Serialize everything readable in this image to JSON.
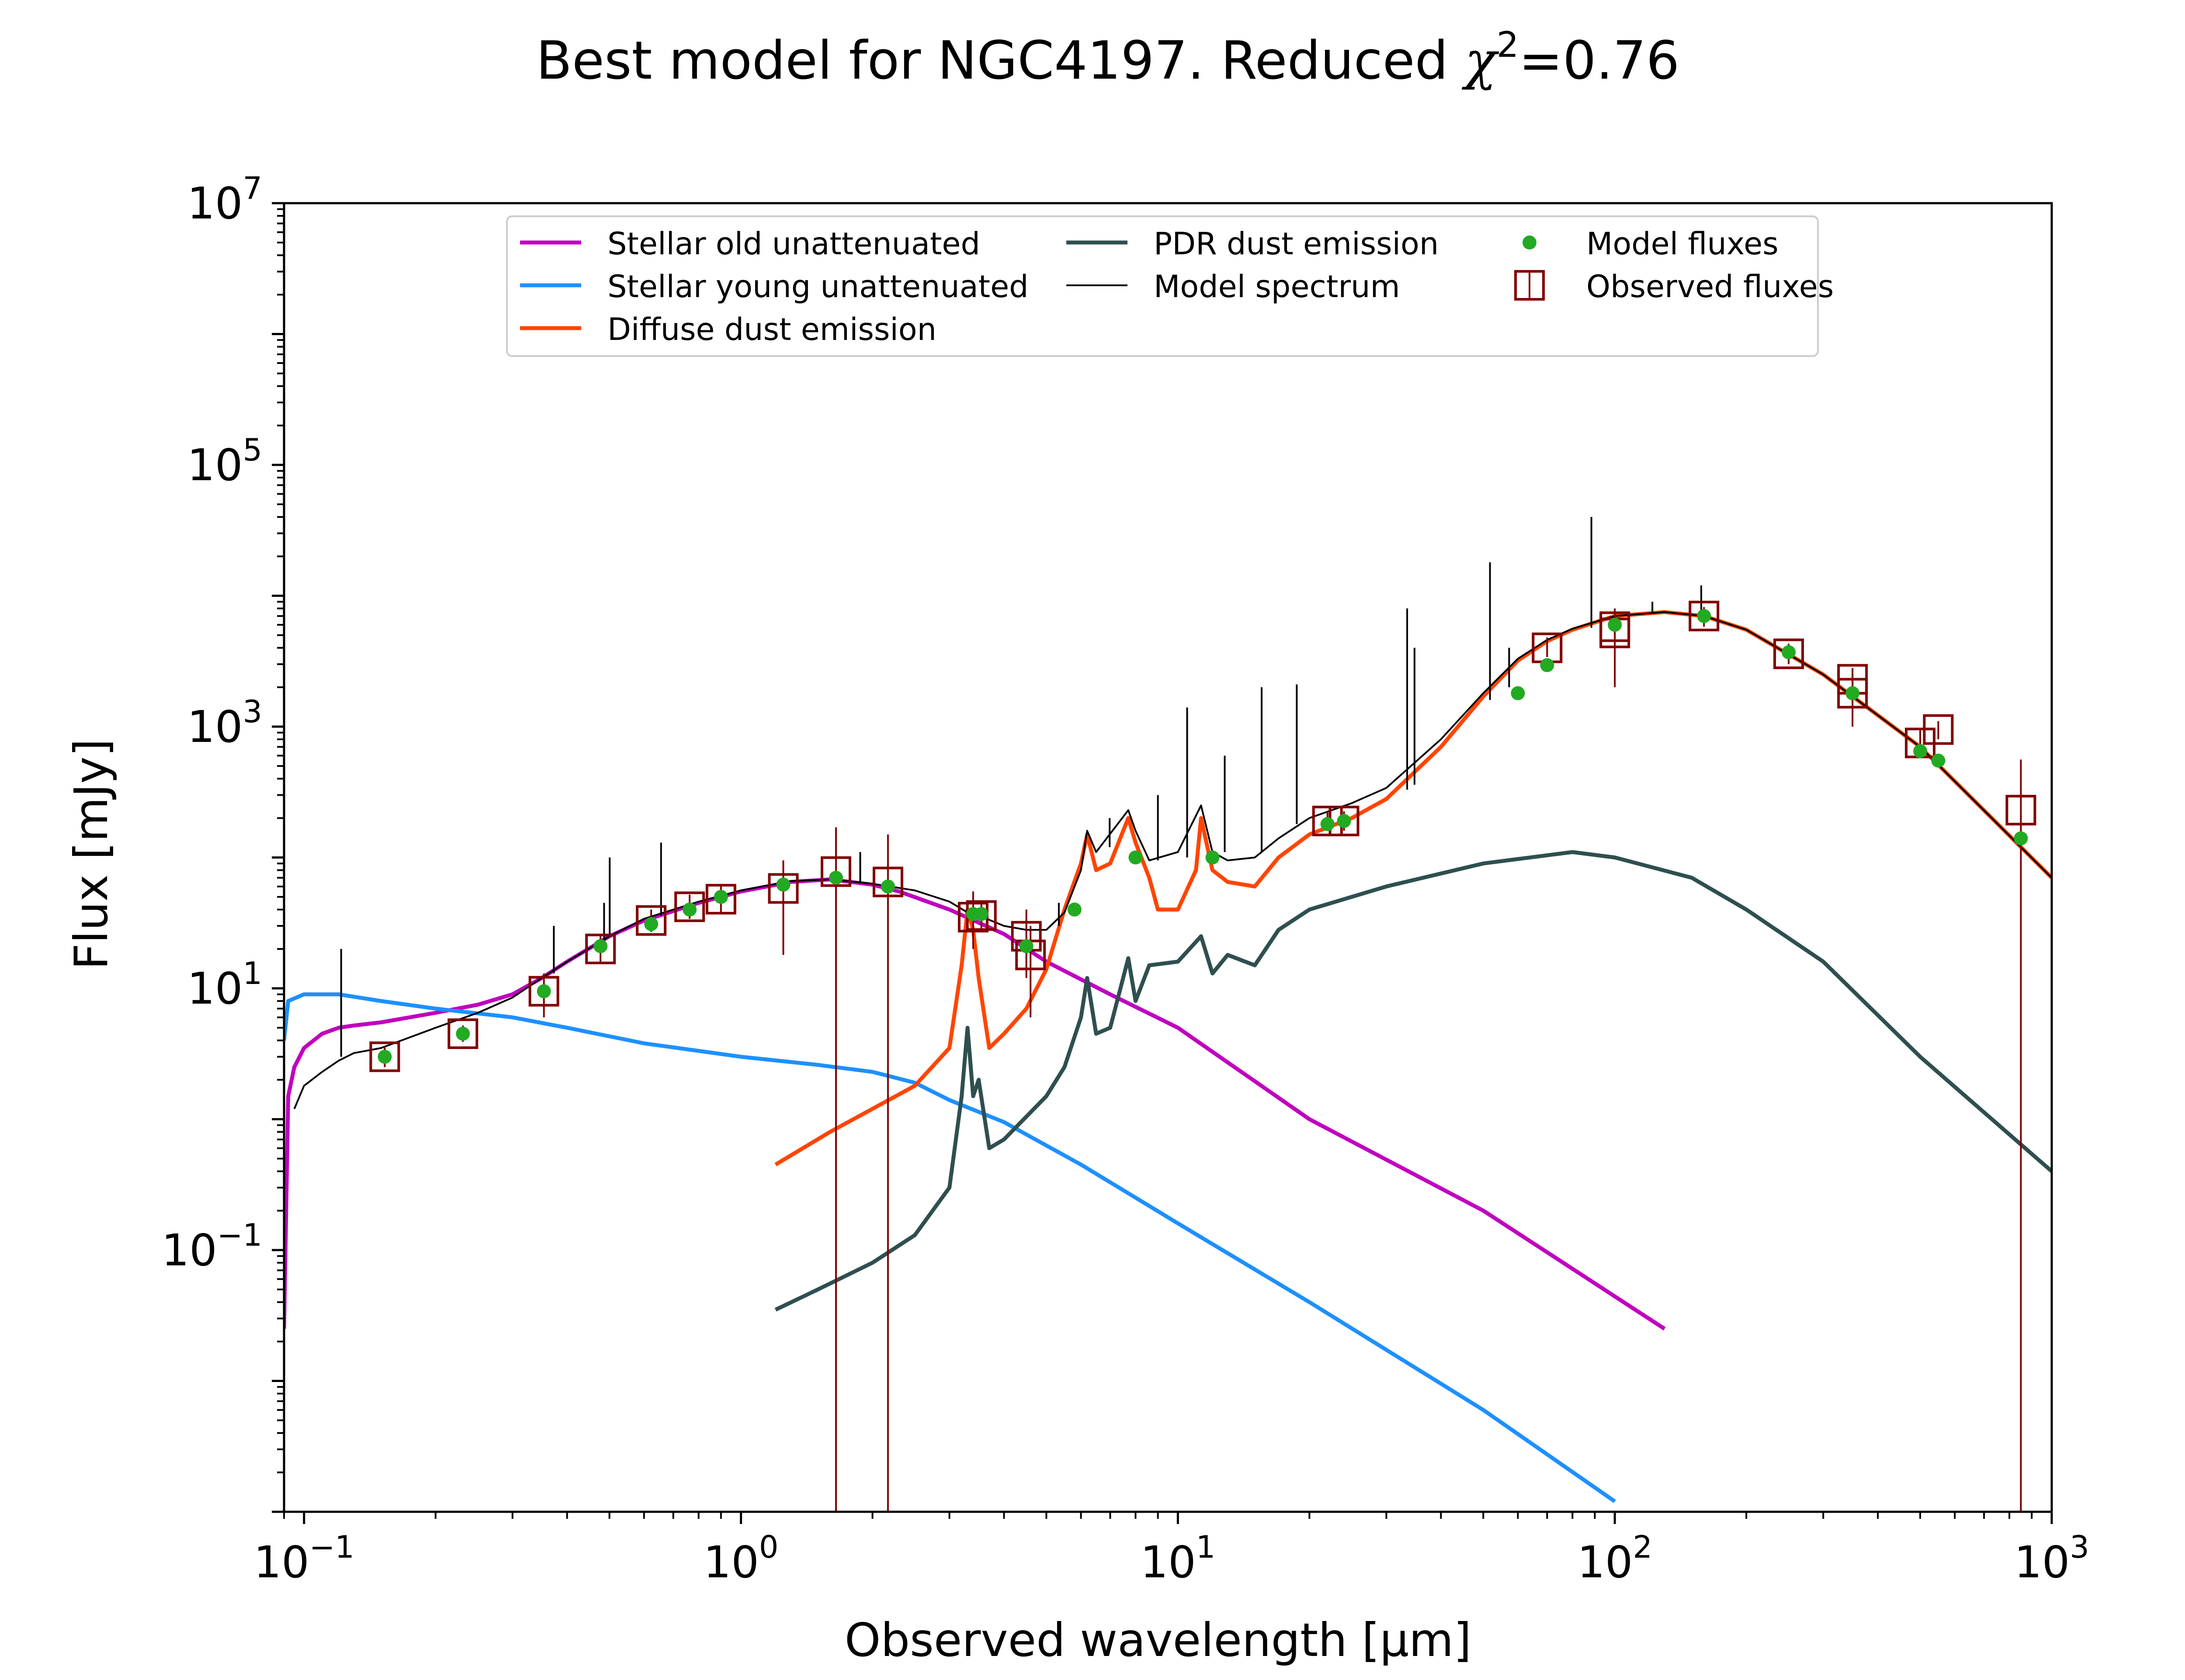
{
  "chart_data": {
    "type": "line",
    "title": "Best model for NGC4197. Reduced χ²=0.76",
    "title_parts": {
      "prefix": "Best model for NGC4197. Reduced ",
      "symbol": "χ",
      "superscript": "2",
      "suffix": "=0.76"
    },
    "xlabel": "Observed wavelength [μm]",
    "ylabel": "Flux [mJy]",
    "xscale": "log",
    "yscale": "log",
    "xlim": [
      0.09,
      1000
    ],
    "ylim": [
      0.001,
      10000000
    ],
    "grid": false,
    "legend_placement": "upper-center",
    "x_ticks": [
      {
        "value": 0.1,
        "base": "10",
        "exp": "−1"
      },
      {
        "value": 1,
        "base": "10",
        "exp": "0"
      },
      {
        "value": 10,
        "base": "10",
        "exp": "1"
      },
      {
        "value": 100,
        "base": "10",
        "exp": "2"
      },
      {
        "value": 1000,
        "base": "10",
        "exp": "3"
      }
    ],
    "y_ticks": [
      {
        "value": 0.1,
        "base": "10",
        "exp": "−1"
      },
      {
        "value": 10,
        "base": "10",
        "exp": "1"
      },
      {
        "value": 1000,
        "base": "10",
        "exp": "3"
      },
      {
        "value": 100000,
        "base": "10",
        "exp": "5"
      },
      {
        "value": 10000000,
        "base": "10",
        "exp": "7"
      }
    ],
    "series": [
      {
        "name": "Stellar old unattenuated",
        "color": "#bf00bf",
        "x": [
          0.09,
          0.092,
          0.095,
          0.1,
          0.11,
          0.12,
          0.13,
          0.15,
          0.2,
          0.25,
          0.3,
          0.35,
          0.4,
          0.5,
          0.6,
          0.8,
          1.0,
          1.3,
          1.6,
          2.0,
          2.3,
          3.0,
          4.0,
          5.0,
          7.0,
          10,
          20,
          50,
          130
        ],
        "y": [
          0.025,
          1.5,
          2.5,
          3.5,
          4.5,
          5.0,
          5.2,
          5.5,
          6.5,
          7.5,
          9.0,
          12,
          16,
          25,
          33,
          45,
          55,
          65,
          68,
          62,
          55,
          40,
          26,
          16,
          9,
          5,
          1.0,
          0.2,
          0.025
        ]
      },
      {
        "name": "Stellar young unattenuated",
        "color": "#1e90ff",
        "x": [
          0.09,
          0.092,
          0.1,
          0.12,
          0.15,
          0.2,
          0.3,
          0.4,
          0.6,
          1.0,
          1.5,
          2.0,
          2.5,
          3.0,
          4.0,
          6.0,
          10,
          20,
          50,
          100
        ],
        "y": [
          4,
          8,
          9,
          9,
          8,
          7,
          6,
          5,
          3.8,
          3.0,
          2.6,
          2.3,
          1.9,
          1.4,
          0.95,
          0.45,
          0.16,
          0.04,
          0.006,
          0.0012
        ]
      },
      {
        "name": "Diffuse dust emission",
        "color": "#ff4500",
        "x": [
          1.2,
          1.6,
          2.0,
          2.5,
          3.0,
          3.2,
          3.3,
          3.4,
          3.5,
          3.7,
          4.0,
          4.5,
          5.0,
          5.5,
          6.0,
          6.2,
          6.5,
          7.0,
          7.7,
          8.0,
          8.6,
          9.0,
          10,
          11,
          11.3,
          12,
          13,
          15,
          17,
          20,
          25,
          30,
          40,
          50,
          60,
          70,
          80,
          100,
          130,
          160,
          200,
          300,
          500,
          1000
        ],
        "y": [
          0.45,
          0.8,
          1.2,
          1.8,
          3.5,
          15,
          40,
          28,
          12,
          3.5,
          4.5,
          7,
          14,
          40,
          90,
          150,
          80,
          90,
          200,
          130,
          70,
          40,
          40,
          80,
          200,
          80,
          65,
          60,
          100,
          150,
          200,
          280,
          700,
          1700,
          3200,
          4500,
          5500,
          7000,
          7500,
          7000,
          5500,
          2500,
          700,
          70
        ]
      },
      {
        "name": "PDR dust emission",
        "color": "#2f4f4f",
        "x": [
          1.2,
          1.5,
          2.0,
          2.5,
          3.0,
          3.2,
          3.3,
          3.4,
          3.5,
          3.7,
          4.0,
          5.0,
          5.5,
          6.0,
          6.2,
          6.5,
          7.0,
          7.7,
          8.0,
          8.6,
          10,
          11.3,
          12,
          13,
          15,
          17,
          20,
          30,
          50,
          80,
          100,
          150,
          200,
          300,
          500,
          1000
        ],
        "y": [
          0.035,
          0.05,
          0.08,
          0.13,
          0.3,
          1.5,
          5.0,
          1.5,
          2.0,
          0.6,
          0.7,
          1.5,
          2.5,
          6.0,
          12,
          4.5,
          5.0,
          17,
          8,
          15,
          16,
          25,
          13,
          18,
          15,
          28,
          40,
          60,
          90,
          110,
          100,
          70,
          40,
          16,
          3.0,
          0.4
        ]
      },
      {
        "name": "Model spectrum",
        "color": "#000000",
        "x": [
          0.095,
          0.1,
          0.11,
          0.12,
          0.13,
          0.15,
          0.2,
          0.25,
          0.3,
          0.35,
          0.4,
          0.5,
          0.6,
          0.8,
          1.0,
          1.3,
          1.6,
          2.0,
          2.5,
          3.0,
          3.3,
          3.5,
          4.0,
          4.5,
          5.0,
          5.5,
          6.0,
          6.2,
          6.5,
          7.7,
          8.0,
          8.6,
          10,
          11.3,
          12,
          13,
          15,
          17,
          20,
          25,
          30,
          40,
          50,
          60,
          70,
          80,
          100,
          130,
          160,
          200,
          300,
          500,
          1000
        ],
        "y": [
          1.2,
          1.8,
          2.3,
          2.8,
          3.2,
          3.5,
          5.0,
          6.5,
          8.5,
          12,
          16,
          25,
          34,
          46,
          56,
          66,
          68,
          63,
          56,
          46,
          38,
          36,
          30,
          28,
          28,
          38,
          80,
          160,
          110,
          230,
          160,
          95,
          110,
          250,
          110,
          95,
          100,
          140,
          200,
          260,
          340,
          800,
          1800,
          3300,
          4600,
          5600,
          7000,
          7500,
          7000,
          5500,
          2500,
          700,
          70
        ]
      }
    ],
    "emission_lines": [
      {
        "x": 0.1216,
        "y_base": 3.0,
        "y_peak": 20
      },
      {
        "x": 0.373,
        "y_base": 13,
        "y_peak": 30
      },
      {
        "x": 0.4861,
        "y_base": 24,
        "y_peak": 45
      },
      {
        "x": 0.5007,
        "y_base": 25,
        "y_peak": 100
      },
      {
        "x": 0.6563,
        "y_base": 36,
        "y_peak": 130
      },
      {
        "x": 1.875,
        "y_base": 65,
        "y_peak": 110
      },
      {
        "x": 5.34,
        "y_base": 30,
        "y_peak": 45
      },
      {
        "x": 6.98,
        "y_base": 120,
        "y_peak": 200
      },
      {
        "x": 9.0,
        "y_base": 95,
        "y_peak": 300
      },
      {
        "x": 10.5,
        "y_base": 100,
        "y_peak": 1400
      },
      {
        "x": 12.8,
        "y_base": 110,
        "y_peak": 600
      },
      {
        "x": 15.55,
        "y_base": 110,
        "y_peak": 2000
      },
      {
        "x": 18.71,
        "y_base": 180,
        "y_peak": 2100
      },
      {
        "x": 33.48,
        "y_base": 330,
        "y_peak": 8000
      },
      {
        "x": 34.8,
        "y_base": 360,
        "y_peak": 4000
      },
      {
        "x": 51.8,
        "y_base": 1600,
        "y_peak": 18000
      },
      {
        "x": 57.3,
        "y_base": 2000,
        "y_peak": 4000
      },
      {
        "x": 88.4,
        "y_base": 5700,
        "y_peak": 40000
      },
      {
        "x": 121.9,
        "y_base": 7500,
        "y_peak": 9000
      },
      {
        "x": 157.7,
        "y_base": 7200,
        "y_peak": 12000
      }
    ],
    "model_fluxes": {
      "name": "Model fluxes",
      "color": "#22aa22",
      "x": [
        0.153,
        0.231,
        0.354,
        0.477,
        0.623,
        0.763,
        0.9,
        1.25,
        1.65,
        2.17,
        3.4,
        3.55,
        4.5,
        5.8,
        8.0,
        12,
        22,
        24,
        60,
        70,
        100,
        160,
        250,
        350,
        500,
        550,
        850
      ],
      "y": [
        3.0,
        4.5,
        9.5,
        21,
        31,
        40,
        50,
        62,
        70,
        60,
        37,
        37,
        21,
        40,
        100,
        100,
        180,
        190,
        1800,
        2950,
        6000,
        7000,
        3700,
        1800,
        650,
        550,
        140
      ]
    },
    "observed_fluxes": {
      "name": "Observed fluxes",
      "color": "#800000",
      "points": [
        {
          "x": 0.153,
          "y": 3.0,
          "lo": 2.5,
          "hi": 3.6
        },
        {
          "x": 0.231,
          "y": 4.5,
          "lo": 3.9,
          "hi": 5.2
        },
        {
          "x": 0.354,
          "y": 9.5,
          "lo": 6.0,
          "hi": 13
        },
        {
          "x": 0.477,
          "y": 20,
          "lo": 16,
          "hi": 26
        },
        {
          "x": 0.623,
          "y": 33,
          "lo": 27,
          "hi": 40
        },
        {
          "x": 0.763,
          "y": 42,
          "lo": 34,
          "hi": 52
        },
        {
          "x": 0.9,
          "y": 48,
          "lo": 38,
          "hi": 60
        },
        {
          "x": 1.25,
          "y": 58,
          "lo": 18,
          "hi": 95
        },
        {
          "x": 1.65,
          "y": 78,
          "lo": 0.001,
          "hi": 170
        },
        {
          "x": 2.17,
          "y": 65,
          "lo": 0.001,
          "hi": 150
        },
        {
          "x": 3.4,
          "y": 35,
          "lo": 20,
          "hi": 55
        },
        {
          "x": 3.55,
          "y": 36,
          "lo": 27,
          "hi": 46
        },
        {
          "x": 4.5,
          "y": 25,
          "lo": 12,
          "hi": 40
        },
        {
          "x": 4.6,
          "y": 18,
          "lo": 6,
          "hi": 30
        },
        {
          "x": 22,
          "y": 190,
          "lo": 160,
          "hi": 225
        },
        {
          "x": 24,
          "y": 190,
          "lo": 160,
          "hi": 225
        },
        {
          "x": 70,
          "y": 4000,
          "lo": 3400,
          "hi": 4800
        },
        {
          "x": 100,
          "y": 5200,
          "lo": 2000,
          "hi": 8000
        },
        {
          "x": 100,
          "y": 5800,
          "lo": 4500,
          "hi": 7200
        },
        {
          "x": 160,
          "y": 7000,
          "lo": 5800,
          "hi": 8200
        },
        {
          "x": 250,
          "y": 3600,
          "lo": 3000,
          "hi": 4300
        },
        {
          "x": 350,
          "y": 2300,
          "lo": 1800,
          "hi": 2800
        },
        {
          "x": 350,
          "y": 1800,
          "lo": 1000,
          "hi": 2500
        },
        {
          "x": 500,
          "y": 750,
          "lo": 600,
          "hi": 950
        },
        {
          "x": 550,
          "y": 950,
          "lo": 800,
          "hi": 1100
        },
        {
          "x": 850,
          "y": 230,
          "lo": 0.001,
          "hi": 560
        }
      ]
    },
    "legend": {
      "items": [
        {
          "label": "Stellar old unattenuated",
          "kind": "line",
          "color": "#bf00bf"
        },
        {
          "label": "Stellar young unattenuated",
          "kind": "line",
          "color": "#1e90ff"
        },
        {
          "label": "Diffuse dust emission",
          "kind": "line",
          "color": "#ff4500"
        },
        {
          "label": "PDR dust emission",
          "kind": "line",
          "color": "#2f4f4f"
        },
        {
          "label": "Model spectrum",
          "kind": "thinline",
          "color": "#000000"
        },
        {
          "label": "Model fluxes",
          "kind": "dot",
          "color": "#22aa22"
        },
        {
          "label": "Observed fluxes",
          "kind": "square",
          "color": "#800000"
        }
      ]
    }
  }
}
